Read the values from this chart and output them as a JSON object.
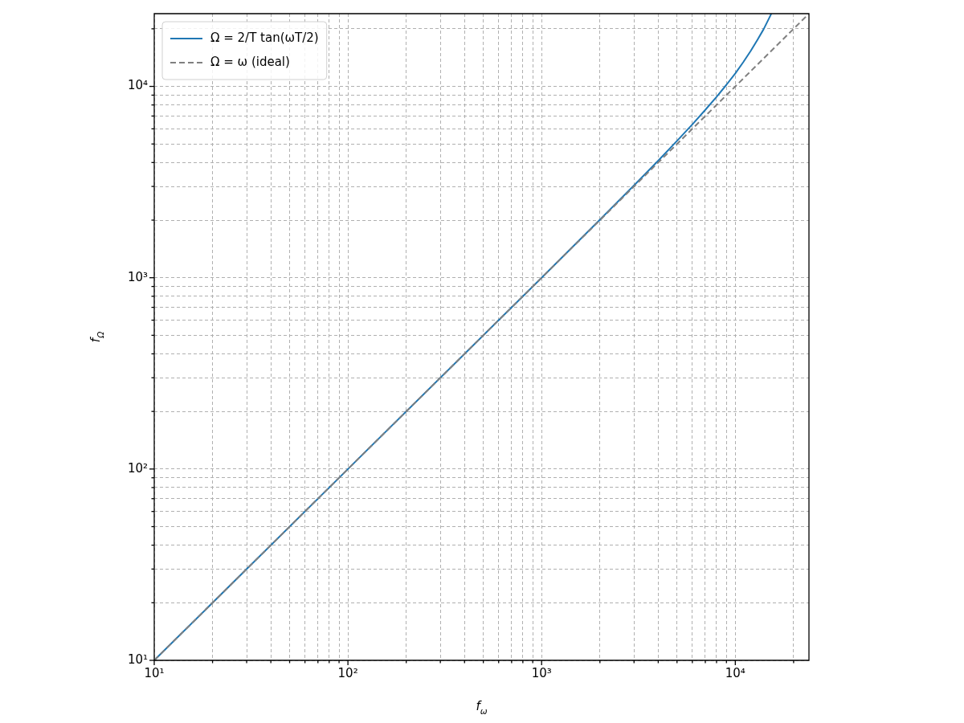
{
  "chart_data": {
    "type": "line",
    "xlabel": "f$_{ω}$",
    "ylabel": "f$_{Ω}$",
    "log": "xy",
    "grid": true,
    "legend": "top left",
    "marker": "none",
    "xlim": [
      10,
      24000
    ],
    "ylim": [
      10,
      24000
    ],
    "xticks": [
      {
        "value": 10,
        "label": "10¹"
      },
      {
        "value": 20,
        "label": null
      },
      {
        "value": 30,
        "label": null
      },
      {
        "value": 40,
        "label": null
      },
      {
        "value": 50,
        "label": null
      },
      {
        "value": 60,
        "label": null
      },
      {
        "value": 70,
        "label": null
      },
      {
        "value": 80,
        "label": null
      },
      {
        "value": 90,
        "label": null
      },
      {
        "value": 100,
        "label": "10²"
      },
      {
        "value": 200,
        "label": null
      },
      {
        "value": 300,
        "label": null
      },
      {
        "value": 400,
        "label": null
      },
      {
        "value": 500,
        "label": null
      },
      {
        "value": 600,
        "label": null
      },
      {
        "value": 700,
        "label": null
      },
      {
        "value": 800,
        "label": null
      },
      {
        "value": 900,
        "label": null
      },
      {
        "value": 1000,
        "label": "10³"
      },
      {
        "value": 2000,
        "label": null
      },
      {
        "value": 3000,
        "label": null
      },
      {
        "value": 4000,
        "label": null
      },
      {
        "value": 5000,
        "label": null
      },
      {
        "value": 6000,
        "label": null
      },
      {
        "value": 7000,
        "label": null
      },
      {
        "value": 8000,
        "label": null
      },
      {
        "value": 9000,
        "label": null
      },
      {
        "value": 10000,
        "label": "10⁴"
      },
      {
        "value": 20000,
        "label": null
      }
    ],
    "yticks": [
      {
        "value": 10,
        "label": "10¹"
      },
      {
        "value": 20,
        "label": null
      },
      {
        "value": 30,
        "label": null
      },
      {
        "value": 40,
        "label": null
      },
      {
        "value": 50,
        "label": null
      },
      {
        "value": 60,
        "label": null
      },
      {
        "value": 70,
        "label": null
      },
      {
        "value": 80,
        "label": null
      },
      {
        "value": 90,
        "label": null
      },
      {
        "value": 100,
        "label": "10²"
      },
      {
        "value": 200,
        "label": null
      },
      {
        "value": 300,
        "label": null
      },
      {
        "value": 400,
        "label": null
      },
      {
        "value": 500,
        "label": null
      },
      {
        "value": 600,
        "label": null
      },
      {
        "value": 700,
        "label": null
      },
      {
        "value": 800,
        "label": null
      },
      {
        "value": 900,
        "label": null
      },
      {
        "value": 1000,
        "label": "10³"
      },
      {
        "value": 2000,
        "label": null
      },
      {
        "value": 3000,
        "label": null
      },
      {
        "value": 4000,
        "label": null
      },
      {
        "value": 5000,
        "label": null
      },
      {
        "value": 6000,
        "label": null
      },
      {
        "value": 7000,
        "label": null
      },
      {
        "value": 8000,
        "label": null
      },
      {
        "value": 9000,
        "label": null
      },
      {
        "value": 10000,
        "label": "10⁴"
      },
      {
        "value": 20000,
        "label": null
      }
    ],
    "series": [
      {
        "name": "Ω = 2/T tan(ωT/2)",
        "color": "#1f77b4",
        "line_style": "solid",
        "x": [
          10,
          100,
          1000,
          2000,
          3000,
          4000,
          5000,
          6000,
          7000,
          8000,
          9000,
          10000,
          11000,
          12000,
          13000,
          14000,
          15000,
          15340
        ],
        "values": [
          10,
          100,
          1000,
          2010,
          3040,
          4090,
          5190,
          6330,
          7540,
          8820,
          10200,
          11700,
          13400,
          15300,
          17500,
          19900,
          22900,
          24000
        ]
      },
      {
        "name": "Ω = ω (ideal)",
        "color": "#808080",
        "line_style": "dashed",
        "x": [
          10,
          24000
        ],
        "values": [
          10,
          24000
        ]
      }
    ]
  }
}
